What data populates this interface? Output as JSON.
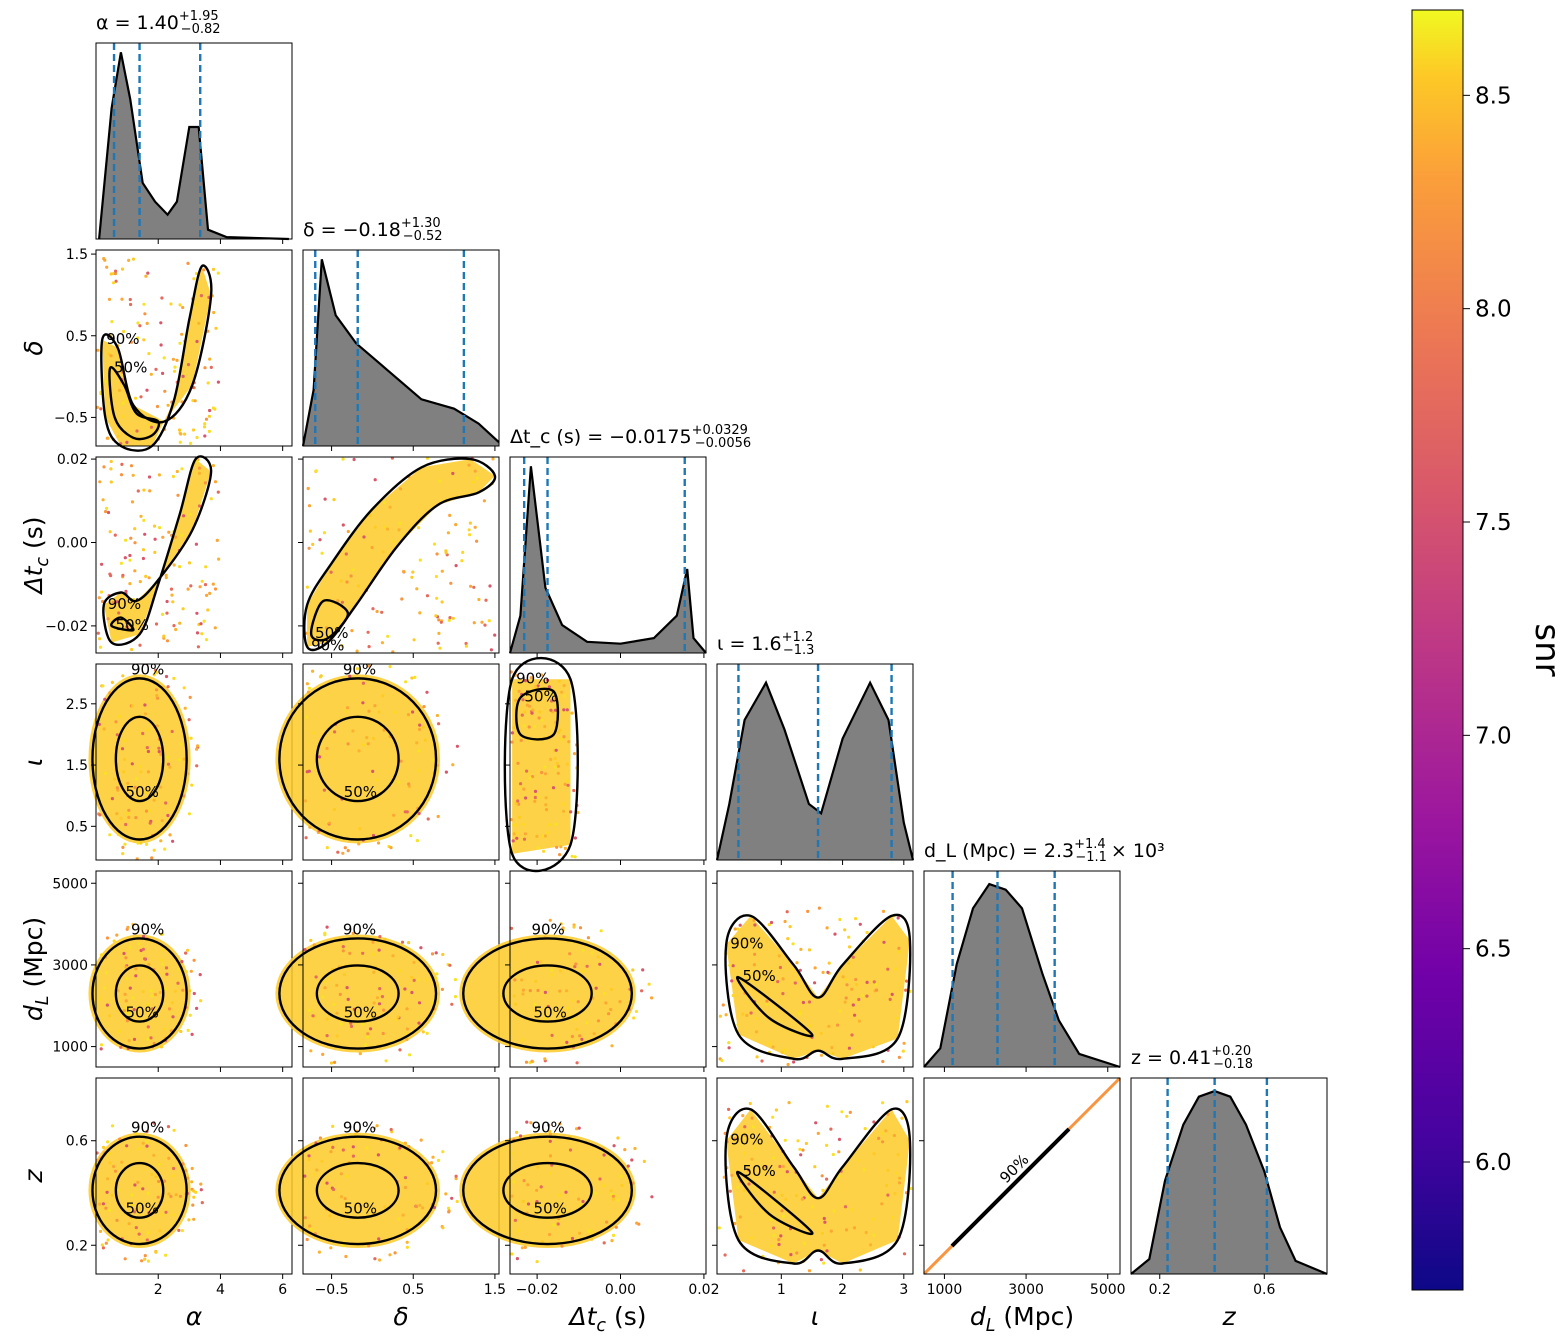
{
  "colorbar": {
    "label": "snr",
    "range": [
      5.7,
      8.7
    ],
    "ticks": [
      "6.0",
      "6.5",
      "7.0",
      "7.5",
      "8.0",
      "8.5"
    ],
    "colormap": "plasma"
  },
  "chart_data": {
    "type": "corner",
    "contour_levels": [
      "50%",
      "90%"
    ],
    "histogram_fill": "#808080",
    "quantile_line_color": "#1f77b4",
    "parameters": [
      {
        "key": "alpha",
        "axis_label": "α",
        "title": {
          "base": "α = 1.40",
          "sup": "+1.95",
          "sub": "−0.82"
        },
        "median": 1.4,
        "plus": 1.95,
        "minus": 0.82,
        "range": [
          0.0,
          6.3
        ],
        "ticks": [
          {
            "v": 2,
            "l": "2"
          },
          {
            "v": 4,
            "l": "4"
          },
          {
            "v": 6,
            "l": "6"
          }
        ]
      },
      {
        "key": "delta",
        "axis_label": "δ",
        "title": {
          "base": "δ = −0.18",
          "sup": "+1.30",
          "sub": "−0.52"
        },
        "median": -0.18,
        "plus": 1.3,
        "minus": 0.52,
        "range": [
          -0.85,
          1.55
        ],
        "ticks": [
          {
            "v": -0.5,
            "l": "−0.5"
          },
          {
            "v": 0.5,
            "l": "0.5"
          },
          {
            "v": 1.5,
            "l": "1.5"
          }
        ]
      },
      {
        "key": "dtc",
        "axis_label": "Δt_c (s)",
        "title": {
          "base": "Δt_c (s) = −0.0175",
          "sup": "+0.0329",
          "sub": "−0.0056"
        },
        "median": -0.0175,
        "plus": 0.0329,
        "minus": 0.0056,
        "range": [
          -0.0265,
          0.0205
        ],
        "ticks": [
          {
            "v": -0.02,
            "l": "−0.02"
          },
          {
            "v": 0.0,
            "l": "0.00"
          },
          {
            "v": 0.02,
            "l": "0.02"
          }
        ]
      },
      {
        "key": "iota",
        "axis_label": "ι",
        "title": {
          "base": "ι = 1.6",
          "sup": "+1.2",
          "sub": "−1.3"
        },
        "median": 1.6,
        "plus": 1.2,
        "minus": 1.3,
        "range": [
          -0.05,
          3.15
        ],
        "ticks": [
          {
            "v": 1,
            "l": "1"
          },
          {
            "v": 2,
            "l": "2"
          },
          {
            "v": 3,
            "l": "3"
          }
        ],
        "y_ticks": [
          {
            "v": 0.5,
            "l": "0.5"
          },
          {
            "v": 1.5,
            "l": "1.5"
          },
          {
            "v": 2.5,
            "l": "2.5"
          }
        ]
      },
      {
        "key": "dl",
        "axis_label": "d_L (Mpc)",
        "title": {
          "base": "d_L (Mpc) = 2.3",
          "sup": "+1.4",
          "sub": "−1.1",
          "suffix": "× 10³"
        },
        "median": 2300,
        "plus": 1400,
        "minus": 1100,
        "range": [
          500,
          5300
        ],
        "ticks": [
          {
            "v": 1000,
            "l": "1000"
          },
          {
            "v": 3000,
            "l": "3000"
          },
          {
            "v": 5000,
            "l": "5000"
          }
        ]
      },
      {
        "key": "z",
        "axis_label": "z",
        "title": {
          "base": "z = 0.41",
          "sup": "+0.20",
          "sub": "−0.18"
        },
        "median": 0.41,
        "plus": 0.2,
        "minus": 0.18,
        "range": [
          0.09,
          0.84
        ],
        "ticks": [
          {
            "v": 0.2,
            "l": "0.2"
          },
          {
            "v": 0.6,
            "l": "0.6"
          }
        ]
      }
    ],
    "histograms": {
      "alpha": {
        "x": [
          0.1,
          0.5,
          0.8,
          1.1,
          1.5,
          1.9,
          2.3,
          2.6,
          3.0,
          3.3,
          3.6,
          4.2,
          6.2
        ],
        "y": [
          0.0,
          0.7,
          1.0,
          0.75,
          0.3,
          0.2,
          0.13,
          0.2,
          0.6,
          0.6,
          0.05,
          0.01,
          0.0
        ]
      },
      "delta": {
        "x": [
          -0.85,
          -0.72,
          -0.62,
          -0.45,
          -0.2,
          0.2,
          0.6,
          1.0,
          1.3,
          1.55
        ],
        "y": [
          0.0,
          0.3,
          1.0,
          0.7,
          0.55,
          0.4,
          0.25,
          0.2,
          0.12,
          0.02
        ]
      },
      "dtc": {
        "x": [
          -0.0265,
          -0.024,
          -0.0215,
          -0.018,
          -0.014,
          -0.008,
          0.0,
          0.008,
          0.0135,
          0.016,
          0.0175,
          0.0205
        ],
        "y": [
          0.0,
          0.2,
          1.0,
          0.35,
          0.15,
          0.06,
          0.05,
          0.08,
          0.2,
          0.45,
          0.08,
          0.0
        ]
      },
      "iota": {
        "x": [
          -0.05,
          0.15,
          0.4,
          0.75,
          1.05,
          1.45,
          1.65,
          2.0,
          2.45,
          2.75,
          3.0,
          3.15
        ],
        "y": [
          0.0,
          0.3,
          0.75,
          0.95,
          0.7,
          0.3,
          0.25,
          0.65,
          0.95,
          0.75,
          0.2,
          0.0
        ]
      },
      "dl": {
        "x": [
          500,
          900,
          1300,
          1700,
          2100,
          2500,
          2900,
          3400,
          3800,
          4300,
          5300
        ],
        "y": [
          0.0,
          0.1,
          0.55,
          0.85,
          0.98,
          0.95,
          0.85,
          0.5,
          0.25,
          0.07,
          0.0
        ]
      },
      "z": {
        "x": [
          0.09,
          0.16,
          0.22,
          0.29,
          0.35,
          0.41,
          0.47,
          0.53,
          0.6,
          0.66,
          0.72,
          0.84
        ],
        "y": [
          0.0,
          0.08,
          0.5,
          0.8,
          0.95,
          0.98,
          0.95,
          0.8,
          0.55,
          0.25,
          0.07,
          0.0
        ]
      }
    },
    "pair_contours": [
      {
        "x": "alpha",
        "y": "delta",
        "labels": [
          "50%",
          "90%"
        ],
        "c90": [
          [
            0.2,
            0.45
          ],
          [
            0.3,
            -0.5
          ],
          [
            0.8,
            -0.85
          ],
          [
            1.8,
            -0.85
          ],
          [
            2.5,
            -0.3
          ],
          [
            3.0,
            0.7
          ],
          [
            3.4,
            1.35
          ],
          [
            3.7,
            1.0
          ],
          [
            3.1,
            -0.1
          ],
          [
            2.2,
            -0.55
          ],
          [
            1.2,
            -0.35
          ],
          [
            0.7,
            0.35
          ]
        ],
        "c50": [
          [
            0.45,
            0.1
          ],
          [
            0.6,
            -0.5
          ],
          [
            1.2,
            -0.75
          ],
          [
            1.8,
            -0.72
          ],
          [
            2.0,
            -0.55
          ],
          [
            1.3,
            -0.45
          ],
          [
            0.9,
            -0.1
          ]
        ]
      },
      {
        "x": "alpha",
        "y": "dtc",
        "labels": [
          "50%",
          "90%"
        ],
        "c90": [
          [
            0.25,
            -0.015
          ],
          [
            0.5,
            -0.024
          ],
          [
            1.4,
            -0.022
          ],
          [
            2.0,
            -0.01
          ],
          [
            2.7,
            0.007
          ],
          [
            3.2,
            0.02
          ],
          [
            3.7,
            0.017
          ],
          [
            3.1,
            0.003
          ],
          [
            2.0,
            -0.009
          ],
          [
            1.3,
            -0.014
          ],
          [
            0.8,
            -0.012
          ]
        ],
        "c50": [
          [
            0.5,
            -0.02
          ],
          [
            1.2,
            -0.021
          ],
          [
            0.8,
            -0.018
          ]
        ]
      },
      {
        "x": "delta",
        "y": "dtc",
        "labels": [
          "50%",
          "90%"
        ],
        "c90": [
          [
            -0.8,
            -0.025
          ],
          [
            -0.55,
            -0.024
          ],
          [
            -0.2,
            -0.015
          ],
          [
            0.3,
            -0.001
          ],
          [
            0.8,
            0.009
          ],
          [
            1.3,
            0.012
          ],
          [
            1.5,
            0.016
          ],
          [
            1.2,
            0.02
          ],
          [
            0.6,
            0.018
          ],
          [
            0.0,
            0.008
          ],
          [
            -0.5,
            -0.005
          ],
          [
            -0.8,
            -0.015
          ]
        ],
        "c50": [
          [
            -0.75,
            -0.022
          ],
          [
            -0.55,
            -0.023
          ],
          [
            -0.3,
            -0.017
          ],
          [
            -0.6,
            -0.014
          ]
        ]
      },
      {
        "x": "dtc",
        "y": "iota",
        "labels": [
          "50%",
          "90%"
        ],
        "c90": [
          [
            -0.026,
            2.9
          ],
          [
            -0.012,
            2.9
          ],
          [
            -0.012,
            0.2
          ],
          [
            -0.026,
            0.05
          ]
        ],
        "c50": [
          [
            -0.024,
            2.6
          ],
          [
            -0.016,
            2.7
          ],
          [
            -0.016,
            2.0
          ],
          [
            -0.024,
            2.0
          ]
        ]
      },
      {
        "x": "iota",
        "y": "dl",
        "labels": [
          "50%",
          "90%"
        ],
        "c90": [
          [
            0.1,
            3500
          ],
          [
            0.5,
            4200
          ],
          [
            1.2,
            3000
          ],
          [
            1.6,
            2200
          ],
          [
            2.0,
            3000
          ],
          [
            2.8,
            4200
          ],
          [
            3.1,
            3600
          ],
          [
            2.9,
            1200
          ],
          [
            2.0,
            700
          ],
          [
            1.6,
            900
          ],
          [
            1.2,
            700
          ],
          [
            0.3,
            1300
          ]
        ],
        "c50": [
          [
            0.3,
            2700
          ],
          [
            1.5,
            1300
          ],
          [
            0.8,
            1700
          ]
        ]
      },
      {
        "x": "iota",
        "y": "z",
        "labels": [
          "50%",
          "90%"
        ],
        "c90": [
          [
            0.1,
            0.6
          ],
          [
            0.5,
            0.72
          ],
          [
            1.2,
            0.5
          ],
          [
            1.6,
            0.38
          ],
          [
            2.0,
            0.5
          ],
          [
            2.8,
            0.72
          ],
          [
            3.1,
            0.6
          ],
          [
            2.9,
            0.22
          ],
          [
            2.0,
            0.13
          ],
          [
            1.6,
            0.18
          ],
          [
            1.2,
            0.13
          ],
          [
            0.3,
            0.22
          ]
        ],
        "c50": [
          [
            0.3,
            0.48
          ],
          [
            1.5,
            0.25
          ],
          [
            0.8,
            0.32
          ]
        ]
      }
    ]
  }
}
